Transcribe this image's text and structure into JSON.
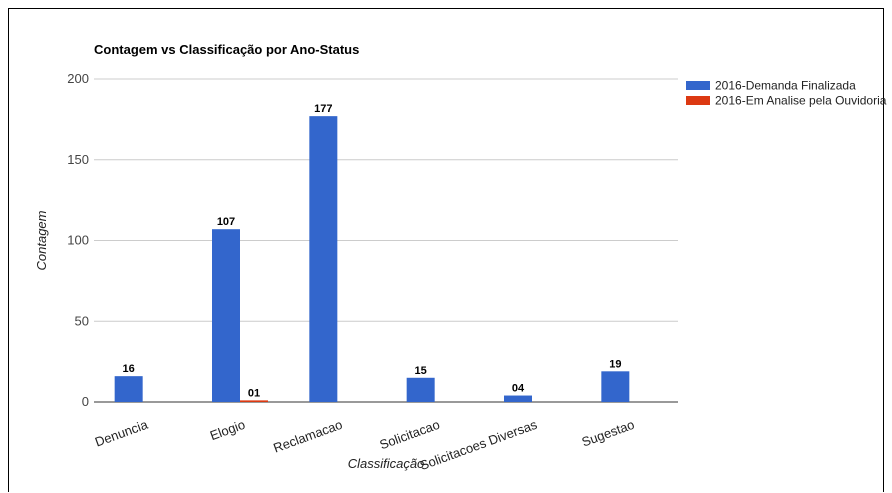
{
  "chart_data": {
    "type": "bar",
    "title": "Contagem vs Classificação por Ano-Status",
    "xlabel": "Classificação",
    "ylabel": "Contagem",
    "ylim": [
      0,
      200
    ],
    "yticks": [
      0,
      50,
      100,
      150,
      200
    ],
    "categories": [
      "Denuncia",
      "Elogio",
      "Reclamacao",
      "Solicitacao",
      "Solicitacoes Diversas",
      "Sugestao"
    ],
    "series": [
      {
        "name": "2016-Demanda Finalizada",
        "color": "#3366cc",
        "values": [
          16,
          107,
          177,
          15,
          4,
          19
        ],
        "labels": [
          "16",
          "107",
          "177",
          "15",
          "04",
          "19"
        ]
      },
      {
        "name": "2016-Em Analise pela Ouvidoria",
        "color": "#dc3912",
        "values": [
          null,
          1,
          null,
          null,
          null,
          null
        ],
        "labels": [
          null,
          "01",
          null,
          null,
          null,
          null
        ]
      }
    ],
    "grid": true,
    "legend_position": "right"
  }
}
